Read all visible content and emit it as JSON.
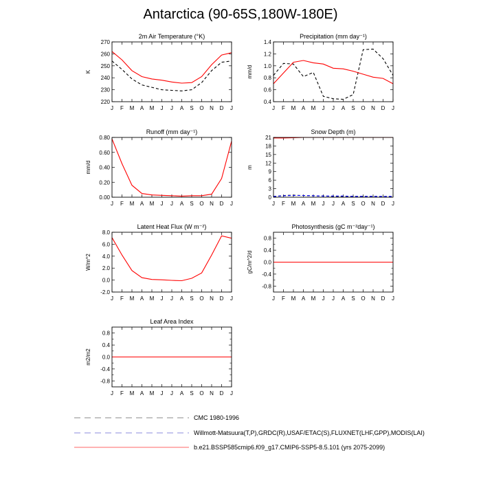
{
  "title": "Antarctica (90-65S,180W-180E)",
  "months": [
    "J",
    "F",
    "M",
    "A",
    "M",
    "J",
    "J",
    "A",
    "S",
    "O",
    "N",
    "D",
    "J"
  ],
  "colors": {
    "obs": "#000000",
    "obs2": "#0000ff",
    "model": "#ff0000",
    "legend_obs": "#888888",
    "legend_obs2": "#8888dd",
    "legend_model": "#ff6666"
  },
  "legend": [
    {
      "label": "CMC 1980-1996",
      "color": "#888888",
      "dash": true
    },
    {
      "label": "Willmott-Matsuura(T,P),GRDC(R),USAF/ETAC(S),FLUXNET(LHF,GPP),MODIS(LAI)",
      "color": "#8888dd",
      "dash": true
    },
    {
      "label": "b.e21.BSSP585cmip6.f09_g17.CMIP6-SSP5-8.5.101 (yrs 2075-2099)",
      "color": "#ff6666",
      "dash": false
    }
  ],
  "chart_data": [
    {
      "type": "line",
      "title": "2m Air Temperature (°K)",
      "ylabel": "K",
      "ylim": [
        220,
        270
      ],
      "yticks": [
        "220",
        "230",
        "240",
        "250",
        "260",
        "270"
      ],
      "yticks_values": [
        220,
        230,
        240,
        250,
        260,
        270
      ],
      "series": [
        {
          "values": [
            254,
            247,
            239,
            234,
            232,
            230,
            229.5,
            229,
            230,
            236,
            246,
            253,
            254
          ],
          "style": "dash-black"
        },
        {
          "values": [
            262,
            255,
            246,
            241,
            239,
            238,
            236.5,
            235.5,
            236,
            241,
            251,
            259,
            261
          ],
          "style": "solid-red"
        }
      ]
    },
    {
      "type": "line",
      "title": "Precipitation (mm day⁻¹)",
      "ylabel": "mm/d",
      "ylim": [
        0.4,
        1.4
      ],
      "yticks": [
        "0.4",
        "0.6",
        "0.8",
        "1.0",
        "1.2",
        "1.4"
      ],
      "yticks_values": [
        0.4,
        0.6,
        0.8,
        1.0,
        1.2,
        1.4
      ],
      "series": [
        {
          "values": [
            0.84,
            1.04,
            1.03,
            0.82,
            0.89,
            0.49,
            0.45,
            0.44,
            0.52,
            1.27,
            1.28,
            1.12,
            0.84
          ],
          "style": "dash-black"
        },
        {
          "values": [
            0.7,
            0.88,
            1.06,
            1.09,
            1.05,
            1.03,
            0.96,
            0.95,
            0.91,
            0.86,
            0.81,
            0.79,
            0.7
          ],
          "style": "solid-red"
        }
      ]
    },
    {
      "type": "line",
      "title": "Runoff (mm day⁻¹)",
      "ylabel": "mm/d",
      "ylim": [
        0.0,
        0.8
      ],
      "yticks": [
        "0.00",
        "0.20",
        "0.40",
        "0.60",
        "0.80"
      ],
      "yticks_values": [
        0.0,
        0.2,
        0.4,
        0.6,
        0.8
      ],
      "series": [
        {
          "values": [
            0.78,
            0.45,
            0.16,
            0.05,
            0.03,
            0.025,
            0.02,
            0.015,
            0.02,
            0.02,
            0.04,
            0.25,
            0.75
          ],
          "style": "solid-red"
        }
      ]
    },
    {
      "type": "line",
      "title": "Snow Depth (m)",
      "ylabel": "m",
      "ylim": [
        0,
        21
      ],
      "yticks": [
        "0",
        "3",
        "6",
        "9",
        "12",
        "15",
        "18",
        "21"
      ],
      "yticks_values": [
        0,
        3,
        6,
        9,
        12,
        15,
        18,
        21
      ],
      "series": [
        {
          "values": [
            0.2,
            0.6,
            0.7,
            0.6,
            0.5,
            0.4,
            0.3,
            0.3,
            0.3,
            0.3,
            0.3,
            0.2,
            0.2
          ],
          "style": "dash-black"
        },
        {
          "values": [
            0.3,
            0.5,
            0.6,
            0.6,
            0.5,
            0.4,
            0.4,
            0.4,
            0.3,
            0.3,
            0.3,
            0.3,
            0.3
          ],
          "style": "dash-blue"
        },
        {
          "values": [
            20.8,
            20.8,
            20.9,
            21,
            21,
            21,
            21,
            21,
            21,
            21,
            21,
            21,
            21
          ],
          "style": "solid-red"
        }
      ]
    },
    {
      "type": "line",
      "title": "Latent Heat Flux (W m⁻²)",
      "ylabel": "W/m^2",
      "ylim": [
        -2.0,
        8.0
      ],
      "yticks": [
        "-2.0",
        "0.0",
        "2.0",
        "4.0",
        "6.0",
        "8.0"
      ],
      "yticks_values": [
        -2,
        0,
        2,
        4,
        6,
        8
      ],
      "series": [
        {
          "values": [
            7.1,
            4.2,
            1.6,
            0.4,
            0.1,
            0.05,
            -0.05,
            -0.1,
            0.3,
            1.2,
            4.2,
            7.4,
            7.0
          ],
          "style": "solid-red"
        }
      ]
    },
    {
      "type": "line",
      "title": "Photosynthesis (gC m⁻²day⁻¹)",
      "ylabel": "gC/m^2/d",
      "ylim": [
        -1.0,
        1.0
      ],
      "yticks": [
        "-0.8",
        "-0.4",
        "0.0",
        "0.4",
        "0.8"
      ],
      "yticks_values": [
        -0.8,
        -0.4,
        0,
        0.4,
        0.8
      ],
      "minor_yticks": [
        -0.6,
        -0.2,
        0.2,
        0.6
      ],
      "series": [
        {
          "values": [
            0,
            0,
            0,
            0,
            0,
            0,
            0,
            0,
            0,
            0,
            0,
            0,
            0
          ],
          "style": "solid-red"
        }
      ]
    },
    {
      "type": "line",
      "title": "Leaf Area Index",
      "ylabel": "m2/m2",
      "ylim": [
        -1.0,
        1.0
      ],
      "yticks": [
        "-0.8",
        "-0.4",
        "0.0",
        "0.4",
        "0.8"
      ],
      "yticks_values": [
        -0.8,
        -0.4,
        0,
        0.4,
        0.8
      ],
      "minor_yticks": [
        -0.6,
        -0.2,
        0.2,
        0.6
      ],
      "series": [
        {
          "values": [
            0,
            0,
            0,
            0,
            0,
            0,
            0,
            0,
            0,
            0,
            0,
            0,
            0
          ],
          "style": "solid-red"
        }
      ]
    }
  ]
}
